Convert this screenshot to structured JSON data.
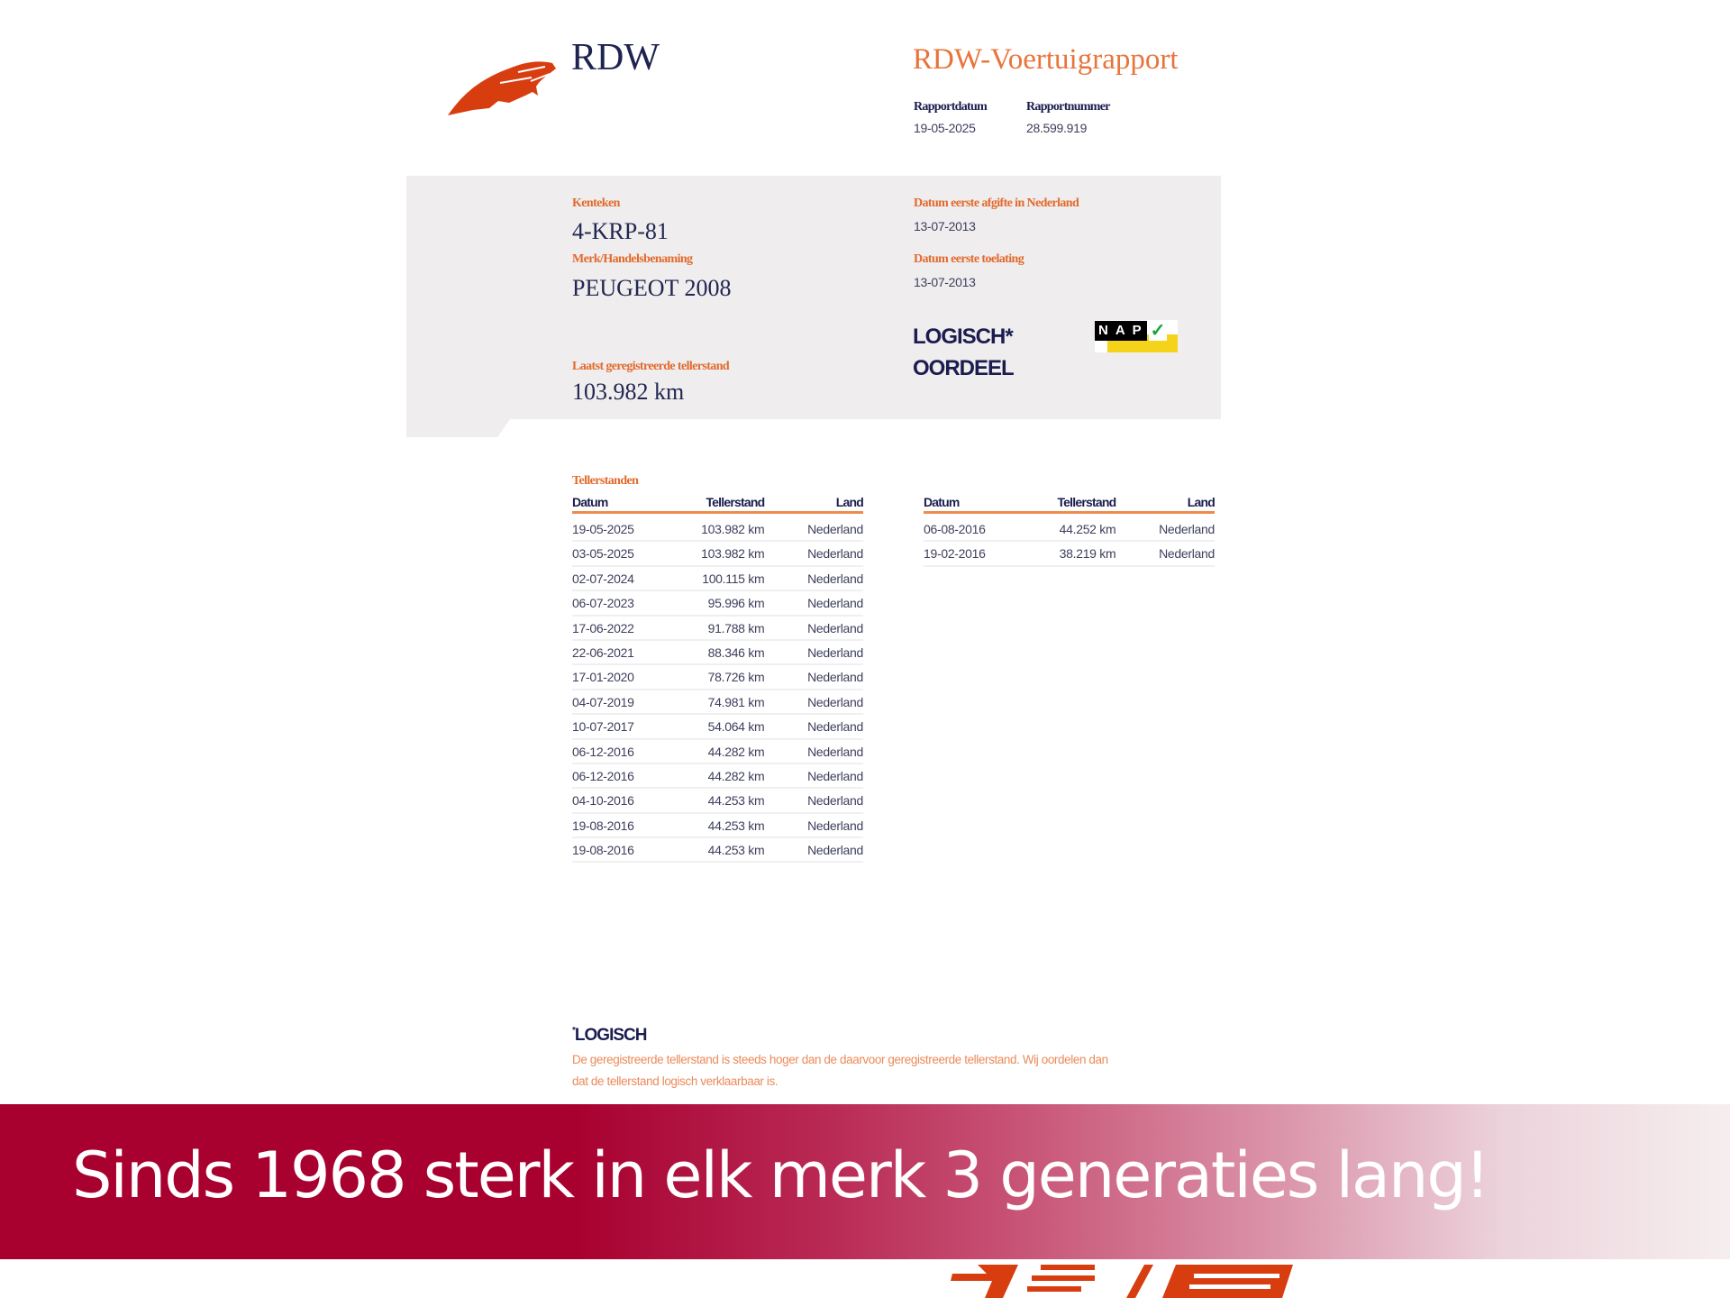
{
  "header": {
    "logo_text": "RDW",
    "report_title": "RDW-Voertuigrapport",
    "rapportdatum_label": "Rapportdatum",
    "rapportdatum": "19-05-2025",
    "rapportnummer_label": "Rapportnummer",
    "rapportnummer": "28.599.919"
  },
  "vehicle": {
    "kenteken_label": "Kenteken",
    "kenteken": "4-KRP-81",
    "merk_label": "Merk/Handelsbenaming",
    "merk": "PEUGEOT 2008",
    "afgifte_label": "Datum eerste afgifte in Nederland",
    "afgifte": "13-07-2013",
    "toelating_label": "Datum eerste toelating",
    "toelating": "13-07-2013",
    "oordeel_value": "LOGISCH*",
    "oordeel_label": "OORDEEL",
    "nap_badge": "NAP",
    "laatst_label": "Laatst geregistreerde tellerstand",
    "laatst": "103.982 km"
  },
  "tellerstanden": {
    "title": "Tellerstanden",
    "columns": [
      "Datum",
      "Tellerstand",
      "Land"
    ],
    "table1": [
      [
        "19-05-2025",
        "103.982 km",
        "Nederland"
      ],
      [
        "03-05-2025",
        "103.982 km",
        "Nederland"
      ],
      [
        "02-07-2024",
        "100.115 km",
        "Nederland"
      ],
      [
        "06-07-2023",
        "95.996 km",
        "Nederland"
      ],
      [
        "17-06-2022",
        "91.788 km",
        "Nederland"
      ],
      [
        "22-06-2021",
        "88.346 km",
        "Nederland"
      ],
      [
        "17-01-2020",
        "78.726 km",
        "Nederland"
      ],
      [
        "04-07-2019",
        "74.981 km",
        "Nederland"
      ],
      [
        "10-07-2017",
        "54.064 km",
        "Nederland"
      ],
      [
        "06-12-2016",
        "44.282 km",
        "Nederland"
      ],
      [
        "06-12-2016",
        "44.282 km",
        "Nederland"
      ],
      [
        "04-10-2016",
        "44.253 km",
        "Nederland"
      ],
      [
        "19-08-2016",
        "44.253 km",
        "Nederland"
      ],
      [
        "19-08-2016",
        "44.253 km",
        "Nederland"
      ]
    ],
    "table2": [
      [
        "06-08-2016",
        "44.252 km",
        "Nederland"
      ],
      [
        "19-02-2016",
        "38.219 km",
        "Nederland"
      ]
    ]
  },
  "footnote": {
    "title": "LOGISCH",
    "text_line1": "De geregistreerde tellerstand is steeds hoger dan de daarvoor geregistreerde tellerstand. Wij oordelen dan",
    "text_line2": "dat de tellerstand logisch verklaarbaar is."
  },
  "banner": {
    "text": "Sinds 1968 sterk in elk merk 3 generaties lang!"
  },
  "colors": {
    "accent": "#e26a2c",
    "navy": "#1f2350",
    "banner": "#a8002f"
  }
}
